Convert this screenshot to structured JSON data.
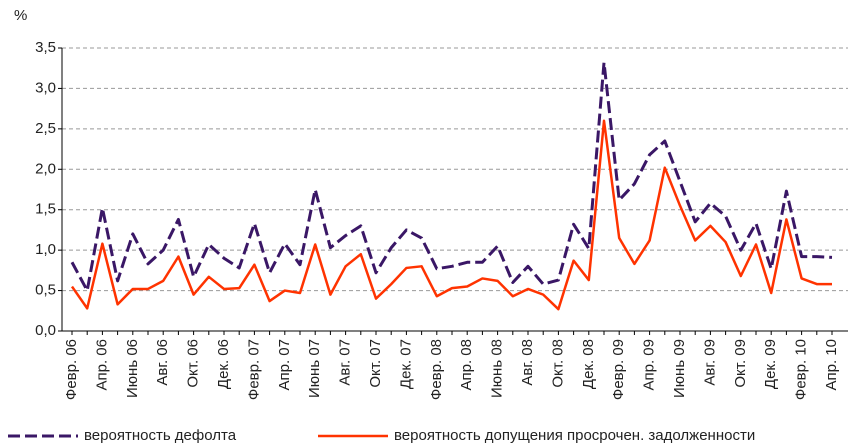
{
  "chart_data": {
    "type": "line",
    "y_label": "%",
    "categories": [
      "Февр. 06",
      null,
      "Апр. 06",
      null,
      "Июнь 06",
      null,
      "Авг. 06",
      null,
      "Окт. 06",
      null,
      "Дек. 06",
      null,
      "Февр. 07",
      null,
      "Апр. 07",
      null,
      "Июнь 07",
      null,
      "Авг. 07",
      null,
      "Окт. 07",
      null,
      "Дек. 07",
      null,
      "Февр. 08",
      null,
      "Апр. 08",
      null,
      "Июнь 08",
      null,
      "Авг. 08",
      null,
      "Окт. 08",
      null,
      "Дек. 08",
      null,
      "Февр. 09",
      null,
      "Апр. 09",
      null,
      "Июнь 09",
      null,
      "Авг. 09",
      null,
      "Окт. 09",
      null,
      "Дек. 09",
      null,
      "Февр. 10",
      null,
      "Апр. 10"
    ],
    "series": [
      {
        "name": "вероятность дефолта",
        "color": "#3a1766",
        "dashed": true,
        "values": [
          0.85,
          0.5,
          1.52,
          0.62,
          1.2,
          0.83,
          1.0,
          1.38,
          0.67,
          1.07,
          0.9,
          0.78,
          1.33,
          0.72,
          1.08,
          0.82,
          1.75,
          1.03,
          1.18,
          1.3,
          0.72,
          1.03,
          1.25,
          1.15,
          0.77,
          0.8,
          0.85,
          0.85,
          1.05,
          0.6,
          0.8,
          0.58,
          0.63,
          1.32,
          1.02,
          3.32,
          1.62,
          1.82,
          2.18,
          2.35,
          1.85,
          1.35,
          1.58,
          1.42,
          1.0,
          1.33,
          0.77,
          1.73,
          0.92,
          0.92,
          0.91
        ]
      },
      {
        "name": "вероятность допущения просрочен. задолженности",
        "color": "#ff3300",
        "dashed": false,
        "values": [
          0.55,
          0.28,
          1.08,
          0.33,
          0.52,
          0.52,
          0.62,
          0.92,
          0.45,
          0.67,
          0.52,
          0.53,
          0.82,
          0.37,
          0.5,
          0.47,
          1.07,
          0.45,
          0.8,
          0.95,
          0.4,
          0.58,
          0.78,
          0.8,
          0.43,
          0.53,
          0.55,
          0.65,
          0.62,
          0.43,
          0.52,
          0.45,
          0.27,
          0.87,
          0.63,
          2.6,
          1.15,
          0.83,
          1.12,
          2.02,
          1.55,
          1.12,
          1.3,
          1.1,
          0.68,
          1.07,
          0.47,
          1.38,
          0.65,
          0.58,
          0.58
        ]
      }
    ],
    "ylim": [
      0,
      3.5
    ],
    "yticks": [
      {
        "value": 0,
        "label": "0,0"
      },
      {
        "value": 0.5,
        "label": "0,5"
      },
      {
        "value": 1,
        "label": "1,0"
      },
      {
        "value": 1.5,
        "label": "1,5"
      },
      {
        "value": 2,
        "label": "2,0"
      },
      {
        "value": 2.5,
        "label": "2,5"
      },
      {
        "value": 3,
        "label": "3,0"
      },
      {
        "value": 3.5,
        "label": "3,5"
      }
    ],
    "grid": true
  }
}
